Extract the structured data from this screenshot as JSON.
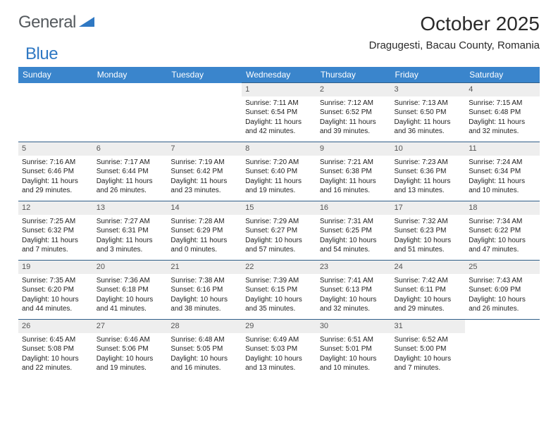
{
  "logo": {
    "text_general": "General",
    "text_blue": "Blue",
    "shape_color": "#2f78c3"
  },
  "title": "October 2025",
  "location": "Dragugesti, Bacau County, Romania",
  "day_headers": [
    "Sunday",
    "Monday",
    "Tuesday",
    "Wednesday",
    "Thursday",
    "Friday",
    "Saturday"
  ],
  "colors": {
    "header_bg": "#3a85cc",
    "header_text": "#ffffff",
    "daynum_bg": "#eeeeee",
    "row_divider": "#2f5e88",
    "page_bg": "#ffffff"
  },
  "weeks": [
    [
      null,
      null,
      null,
      {
        "d": "1",
        "sr": "Sunrise: 7:11 AM",
        "ss": "Sunset: 6:54 PM",
        "dl": "Daylight: 11 hours and 42 minutes."
      },
      {
        "d": "2",
        "sr": "Sunrise: 7:12 AM",
        "ss": "Sunset: 6:52 PM",
        "dl": "Daylight: 11 hours and 39 minutes."
      },
      {
        "d": "3",
        "sr": "Sunrise: 7:13 AM",
        "ss": "Sunset: 6:50 PM",
        "dl": "Daylight: 11 hours and 36 minutes."
      },
      {
        "d": "4",
        "sr": "Sunrise: 7:15 AM",
        "ss": "Sunset: 6:48 PM",
        "dl": "Daylight: 11 hours and 32 minutes."
      }
    ],
    [
      {
        "d": "5",
        "sr": "Sunrise: 7:16 AM",
        "ss": "Sunset: 6:46 PM",
        "dl": "Daylight: 11 hours and 29 minutes."
      },
      {
        "d": "6",
        "sr": "Sunrise: 7:17 AM",
        "ss": "Sunset: 6:44 PM",
        "dl": "Daylight: 11 hours and 26 minutes."
      },
      {
        "d": "7",
        "sr": "Sunrise: 7:19 AM",
        "ss": "Sunset: 6:42 PM",
        "dl": "Daylight: 11 hours and 23 minutes."
      },
      {
        "d": "8",
        "sr": "Sunrise: 7:20 AM",
        "ss": "Sunset: 6:40 PM",
        "dl": "Daylight: 11 hours and 19 minutes."
      },
      {
        "d": "9",
        "sr": "Sunrise: 7:21 AM",
        "ss": "Sunset: 6:38 PM",
        "dl": "Daylight: 11 hours and 16 minutes."
      },
      {
        "d": "10",
        "sr": "Sunrise: 7:23 AM",
        "ss": "Sunset: 6:36 PM",
        "dl": "Daylight: 11 hours and 13 minutes."
      },
      {
        "d": "11",
        "sr": "Sunrise: 7:24 AM",
        "ss": "Sunset: 6:34 PM",
        "dl": "Daylight: 11 hours and 10 minutes."
      }
    ],
    [
      {
        "d": "12",
        "sr": "Sunrise: 7:25 AM",
        "ss": "Sunset: 6:32 PM",
        "dl": "Daylight: 11 hours and 7 minutes."
      },
      {
        "d": "13",
        "sr": "Sunrise: 7:27 AM",
        "ss": "Sunset: 6:31 PM",
        "dl": "Daylight: 11 hours and 3 minutes."
      },
      {
        "d": "14",
        "sr": "Sunrise: 7:28 AM",
        "ss": "Sunset: 6:29 PM",
        "dl": "Daylight: 11 hours and 0 minutes."
      },
      {
        "d": "15",
        "sr": "Sunrise: 7:29 AM",
        "ss": "Sunset: 6:27 PM",
        "dl": "Daylight: 10 hours and 57 minutes."
      },
      {
        "d": "16",
        "sr": "Sunrise: 7:31 AM",
        "ss": "Sunset: 6:25 PM",
        "dl": "Daylight: 10 hours and 54 minutes."
      },
      {
        "d": "17",
        "sr": "Sunrise: 7:32 AM",
        "ss": "Sunset: 6:23 PM",
        "dl": "Daylight: 10 hours and 51 minutes."
      },
      {
        "d": "18",
        "sr": "Sunrise: 7:34 AM",
        "ss": "Sunset: 6:22 PM",
        "dl": "Daylight: 10 hours and 47 minutes."
      }
    ],
    [
      {
        "d": "19",
        "sr": "Sunrise: 7:35 AM",
        "ss": "Sunset: 6:20 PM",
        "dl": "Daylight: 10 hours and 44 minutes."
      },
      {
        "d": "20",
        "sr": "Sunrise: 7:36 AM",
        "ss": "Sunset: 6:18 PM",
        "dl": "Daylight: 10 hours and 41 minutes."
      },
      {
        "d": "21",
        "sr": "Sunrise: 7:38 AM",
        "ss": "Sunset: 6:16 PM",
        "dl": "Daylight: 10 hours and 38 minutes."
      },
      {
        "d": "22",
        "sr": "Sunrise: 7:39 AM",
        "ss": "Sunset: 6:15 PM",
        "dl": "Daylight: 10 hours and 35 minutes."
      },
      {
        "d": "23",
        "sr": "Sunrise: 7:41 AM",
        "ss": "Sunset: 6:13 PM",
        "dl": "Daylight: 10 hours and 32 minutes."
      },
      {
        "d": "24",
        "sr": "Sunrise: 7:42 AM",
        "ss": "Sunset: 6:11 PM",
        "dl": "Daylight: 10 hours and 29 minutes."
      },
      {
        "d": "25",
        "sr": "Sunrise: 7:43 AM",
        "ss": "Sunset: 6:09 PM",
        "dl": "Daylight: 10 hours and 26 minutes."
      }
    ],
    [
      {
        "d": "26",
        "sr": "Sunrise: 6:45 AM",
        "ss": "Sunset: 5:08 PM",
        "dl": "Daylight: 10 hours and 22 minutes."
      },
      {
        "d": "27",
        "sr": "Sunrise: 6:46 AM",
        "ss": "Sunset: 5:06 PM",
        "dl": "Daylight: 10 hours and 19 minutes."
      },
      {
        "d": "28",
        "sr": "Sunrise: 6:48 AM",
        "ss": "Sunset: 5:05 PM",
        "dl": "Daylight: 10 hours and 16 minutes."
      },
      {
        "d": "29",
        "sr": "Sunrise: 6:49 AM",
        "ss": "Sunset: 5:03 PM",
        "dl": "Daylight: 10 hours and 13 minutes."
      },
      {
        "d": "30",
        "sr": "Sunrise: 6:51 AM",
        "ss": "Sunset: 5:01 PM",
        "dl": "Daylight: 10 hours and 10 minutes."
      },
      {
        "d": "31",
        "sr": "Sunrise: 6:52 AM",
        "ss": "Sunset: 5:00 PM",
        "dl": "Daylight: 10 hours and 7 minutes."
      },
      null
    ]
  ]
}
